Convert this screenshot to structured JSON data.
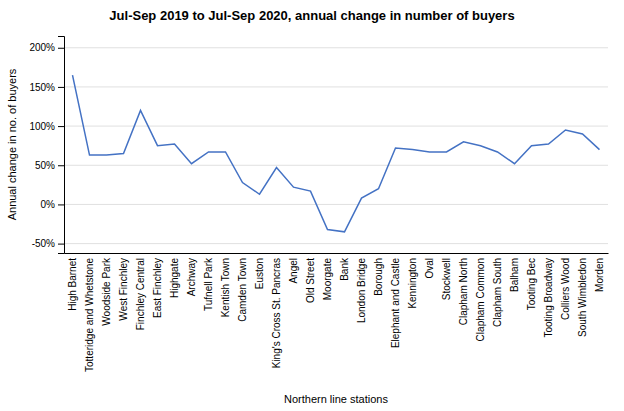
{
  "chart_data": {
    "type": "line",
    "title": "Jul-Sep 2019 to Jul-Sep 2020, annual change in number of buyers",
    "xlabel": "Northern line stations",
    "ylabel": "Annual change in no. of buyers",
    "categories": [
      "High Barnet",
      "Totteridge and Whetstone",
      "Woodside Park",
      "West Finchley",
      "Finchley Central",
      "East Finchley",
      "Highgate",
      "Archway",
      "Tufnell Park",
      "Kentish Town",
      "Camden Town",
      "Euston",
      "King's Cross St. Pancras",
      "Angel",
      "Old Street",
      "Moorgate",
      "Bank",
      "London Bridge",
      "Borough",
      "Elephant and Castle",
      "Kennington",
      "Oval",
      "Stockwell",
      "Clapham North",
      "Clapham Common",
      "Clapham South",
      "Balham",
      "Tooting Bec",
      "Tooting Broadway",
      "Colliers Wood",
      "South Wimbledon",
      "Morden"
    ],
    "values": [
      1.65,
      0.63,
      0.63,
      0.65,
      1.2,
      0.75,
      0.77,
      0.52,
      0.67,
      0.67,
      0.28,
      0.13,
      0.47,
      0.22,
      0.17,
      -0.32,
      -0.35,
      0.08,
      0.2,
      0.72,
      0.7,
      0.67,
      0.67,
      0.8,
      0.75,
      0.67,
      0.52,
      0.75,
      0.77,
      0.95,
      0.9,
      0.7
    ],
    "color": "#4472C4",
    "ylim": [
      -0.62,
      2.15
    ],
    "yticks": [
      {
        "value": -0.5,
        "label": "-50%"
      },
      {
        "value": 0.0,
        "label": "0%"
      },
      {
        "value": 0.5,
        "label": "50%"
      },
      {
        "value": 1.0,
        "label": "100%"
      },
      {
        "value": 1.5,
        "label": "150%"
      },
      {
        "value": 2.0,
        "label": "200%"
      }
    ],
    "grid": true
  }
}
